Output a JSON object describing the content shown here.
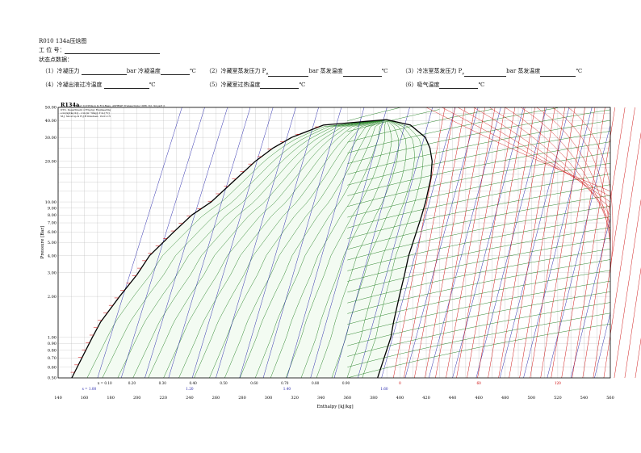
{
  "header": {
    "title": "R010  134a压焓图",
    "job_label": "工    位    号：",
    "state_label": "状态点数据：",
    "fields": [
      {
        "label": "（1）冷凝压力",
        "unit": "bar 冷凝温度",
        "unit2": "℃"
      },
      {
        "label": "（2）冷藏室蒸发压力 P",
        "sub": "R",
        "unit": "bar 蒸发温度",
        "unit2": "℃"
      },
      {
        "label": "（3）冷冻室蒸发压力 P",
        "sub": "F",
        "unit": "bar 蒸发温度",
        "unit2": "℃"
      },
      {
        "label": "（4）冷凝出液过冷温度",
        "unit2": "℃"
      },
      {
        "label": "（5）冷藏室过热温度",
        "unit2": "℃"
      },
      {
        "label": "（6）吸气温度",
        "unit2": "℃"
      }
    ]
  },
  "chart_data": {
    "type": "line",
    "title": "R134a",
    "subtitle": "Ref :D.P.Wilson & R.S.Basu, ASHRAE Transactions 1988, Vol. 94 part 2.",
    "credits": [
      "DTU, Department of Energy Engineering",
      "s in [kJ/(kg K)] , v in [m^3/kg], T in [°C]",
      "M.J. Skovrup & H.J.H Knudsen. 19-01-15"
    ],
    "xlabel": "Enthalpy [kJ/kg]",
    "ylabel": "Pressure [Bar]",
    "x_scale": "linear",
    "y_scale": "log",
    "xlim": [
      140,
      560
    ],
    "ylim": [
      0.5,
      50
    ],
    "x_ticks": [
      "140",
      "160",
      "180",
      "200",
      "220",
      "240",
      "260",
      "280",
      "300",
      "320",
      "340",
      "360",
      "380",
      "400",
      "420",
      "440",
      "460",
      "480",
      "500",
      "520",
      "540",
      "560"
    ],
    "y_ticks": [
      "50.00",
      "40.00",
      "30.00",
      "20.00",
      "10.00",
      "9.00",
      "8.00",
      "7.00",
      "6.00",
      "5.00",
      "4.00",
      "3.00",
      "2.00",
      "1.00",
      "0.90",
      "0.80",
      "0.70",
      "0.60",
      "0.50"
    ],
    "quality_labels": [
      "x = 0.10",
      "0.20",
      "0.30",
      "0.40",
      "0.50",
      "0.60",
      "0.70",
      "0.80",
      "0.90"
    ],
    "entropy_labels": [
      "s = 1.00",
      "1.20",
      "1.40",
      "1.60"
    ],
    "superheat_temps": [
      "0",
      "60",
      "120"
    ],
    "grid": true,
    "colors": {
      "saturation": "#000000",
      "isotherm": "#cc0000",
      "isochore": "#1a7a1a",
      "isentrope": "#1a1aa6",
      "quality": "#1a7a1a",
      "grid": "#b5b5b5"
    },
    "saturated_liquid": [
      [
        150.4,
        0.5
      ],
      [
        166.1,
        1.0
      ],
      [
        172.4,
        1.3
      ],
      [
        186.7,
        2.0
      ],
      [
        200.0,
        2.9
      ],
      [
        209.5,
        4.0
      ],
      [
        228.0,
        6.0
      ],
      [
        241.7,
        8.0
      ],
      [
        256.4,
        10.0
      ],
      [
        276.0,
        15.0
      ],
      [
        290.0,
        20.0
      ],
      [
        303.4,
        25.0
      ],
      [
        317.6,
        30.0
      ],
      [
        341.8,
        37.0
      ],
      [
        389.6,
        40.6
      ]
    ],
    "saturated_vapor": [
      [
        383.0,
        0.5
      ],
      [
        393.1,
        1.0
      ],
      [
        395.2,
        1.3
      ],
      [
        399.5,
        2.0
      ],
      [
        403.5,
        2.9
      ],
      [
        406.6,
        4.0
      ],
      [
        412.5,
        6.0
      ],
      [
        416.6,
        8.0
      ],
      [
        419.5,
        10.0
      ],
      [
        423.5,
        15.0
      ],
      [
        424.5,
        20.0
      ],
      [
        422.8,
        25.0
      ],
      [
        419.3,
        30.0
      ],
      [
        408.0,
        37.0
      ],
      [
        389.6,
        40.6
      ]
    ]
  }
}
